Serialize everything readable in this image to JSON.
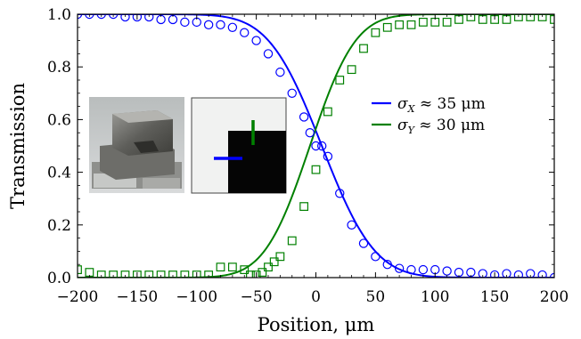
{
  "chart_data": {
    "type": "scatter",
    "title": "",
    "xlabel": "Position, μm",
    "ylabel": "Transmission",
    "xlim": [
      -200,
      200
    ],
    "ylim": [
      0.0,
      1.0
    ],
    "xticks": [
      -200,
      -150,
      -100,
      -50,
      0,
      50,
      100,
      150,
      200
    ],
    "xtick_labels": [
      "−200",
      "−150",
      "−100",
      "−50",
      "0",
      "50",
      "100",
      "150",
      "200"
    ],
    "yticks": [
      0.0,
      0.2,
      0.4,
      0.6,
      0.8,
      1.0
    ],
    "ytick_labels": [
      "0.0",
      "0.2",
      "0.4",
      "0.6",
      "0.8",
      "1.0"
    ],
    "grid": false,
    "legend_position": "center-right",
    "colors": {
      "x_series": "#0000ff",
      "y_series": "#008000"
    },
    "series": [
      {
        "name": "σ_X ≈ 35 μm",
        "legend_symbol": "σ",
        "legend_sub": "X",
        "legend_rest": " ≈ 35 μm",
        "color": "#0000ff",
        "marker": "circle",
        "fit": {
          "kind": "falling-erf",
          "center": 5,
          "sigma": 35
        },
        "x": [
          -200,
          -190,
          -180,
          -170,
          -160,
          -150,
          -140,
          -130,
          -120,
          -110,
          -100,
          -90,
          -80,
          -70,
          -60,
          -50,
          -40,
          -30,
          -20,
          -10,
          -5,
          0,
          5,
          10,
          20,
          30,
          40,
          50,
          60,
          70,
          80,
          90,
          100,
          110,
          120,
          130,
          140,
          150,
          160,
          170,
          180,
          190,
          200
        ],
        "y": [
          1.0,
          1.0,
          1.0,
          1.0,
          0.99,
          0.99,
          0.99,
          0.98,
          0.98,
          0.97,
          0.97,
          0.96,
          0.96,
          0.95,
          0.93,
          0.9,
          0.85,
          0.78,
          0.7,
          0.61,
          0.55,
          0.5,
          0.5,
          0.46,
          0.32,
          0.2,
          0.13,
          0.08,
          0.05,
          0.035,
          0.03,
          0.03,
          0.03,
          0.025,
          0.02,
          0.02,
          0.015,
          0.01,
          0.015,
          0.01,
          0.015,
          0.01,
          0.0
        ]
      },
      {
        "name": "σ_Y ≈ 30 μm",
        "legend_symbol": "σ",
        "legend_sub": "Y",
        "legend_rest": " ≈ 30 μm",
        "color": "#008000",
        "marker": "square",
        "fit": {
          "kind": "rising-erf",
          "center": -5,
          "sigma": 30
        },
        "x": [
          -200,
          -190,
          -180,
          -170,
          -160,
          -150,
          -140,
          -130,
          -120,
          -110,
          -100,
          -90,
          -80,
          -70,
          -60,
          -55,
          -50,
          -45,
          -40,
          -35,
          -30,
          -20,
          -10,
          0,
          10,
          20,
          30,
          40,
          50,
          60,
          70,
          80,
          90,
          100,
          110,
          120,
          130,
          140,
          150,
          160,
          170,
          180,
          190,
          200
        ],
        "y": [
          0.03,
          0.02,
          0.01,
          0.01,
          0.01,
          0.01,
          0.01,
          0.01,
          0.01,
          0.01,
          0.01,
          0.01,
          0.04,
          0.04,
          0.03,
          0.01,
          0.01,
          0.02,
          0.04,
          0.06,
          0.08,
          0.14,
          0.27,
          0.41,
          0.63,
          0.75,
          0.79,
          0.87,
          0.93,
          0.95,
          0.96,
          0.96,
          0.97,
          0.97,
          0.97,
          0.98,
          0.99,
          0.98,
          0.98,
          0.98,
          0.99,
          0.99,
          0.99,
          0.98
        ]
      }
    ]
  },
  "insets": {
    "photo_name": "device-photo",
    "detector_name": "edge-scan-image"
  }
}
